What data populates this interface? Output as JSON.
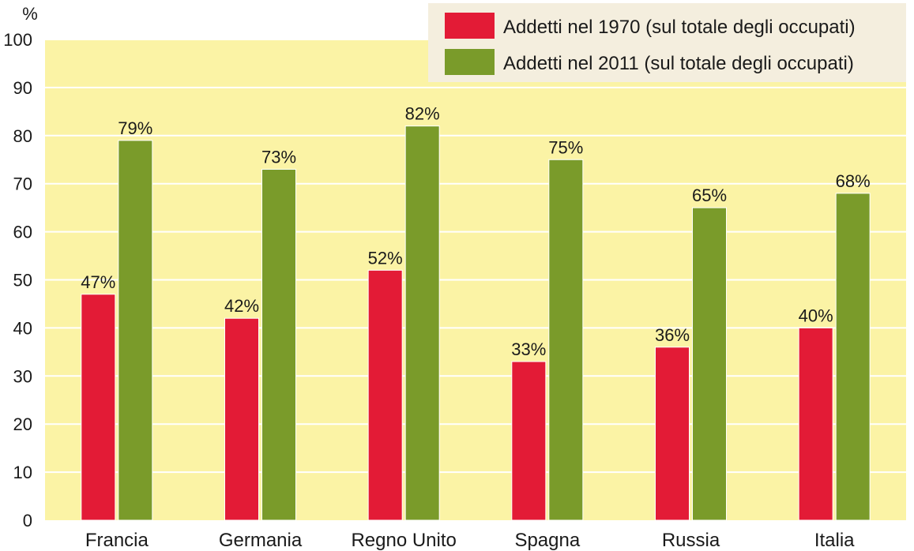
{
  "chart_data": {
    "type": "bar",
    "title": "",
    "ylabel": "%",
    "xlabel": "",
    "ylim": [
      0,
      100
    ],
    "yticks": [
      0,
      10,
      20,
      30,
      40,
      50,
      60,
      70,
      80,
      90,
      100
    ],
    "grid": true,
    "legend": "top-right",
    "categories": [
      "Francia",
      "Germania",
      "Regno Unito",
      "Spagna",
      "Russia",
      "Italia"
    ],
    "series": [
      {
        "name": "Addetti nel 1970 (sul totale degli occupati)",
        "color": "#e31b36",
        "values": [
          47,
          42,
          52,
          33,
          36,
          40
        ],
        "labels": [
          "47%",
          "42%",
          "52%",
          "33%",
          "36%",
          "40%"
        ]
      },
      {
        "name": "Addetti nel 2011 (sul totale degli occupati)",
        "color": "#7a9b2a",
        "values": [
          79,
          73,
          82,
          75,
          65,
          68
        ],
        "labels": [
          "79%",
          "73%",
          "82%",
          "75%",
          "65%",
          "68%"
        ]
      }
    ],
    "colors": {
      "plot_background": "#fbf3a5",
      "gridline": "#ffffff",
      "legend_background": "#f4eede"
    }
  }
}
